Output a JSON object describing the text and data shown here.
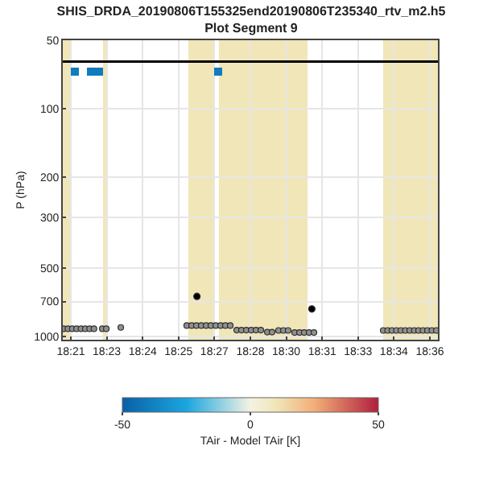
{
  "chart_data": {
    "type": "bar",
    "title": "SHIS_DRDA_20190806T155325end20190806T235340_rtv_m2.h5",
    "subtitle": "Plot Segment 9",
    "ylabel": "P (hPa)",
    "clabel": "TAir - Model TAir [K]",
    "clim": [
      -50,
      50
    ],
    "cticks": [
      -50,
      0,
      50
    ],
    "series": [
      {
        "x": [
          18.3527,
          18.3639,
          18.3694,
          18.4527
        ],
        "base": [
          66,
          66,
          66,
          66
        ],
        "values": [
          6,
          6,
          6,
          6
        ],
        "cvalues": [
          -40,
          -40,
          -40,
          -40
        ]
      },
      {
        "type": "line",
        "color": "#000000",
        "x": [
          18.3444,
          18.6056
        ],
        "values": [
          62,
          62
        ]
      },
      {
        "type": "scatter",
        "color": "#909090",
        "marker": "circle",
        "x": [
          18.345,
          18.348,
          18.351,
          18.354,
          18.3571,
          18.3601,
          18.3631,
          18.3661,
          18.3719,
          18.3747,
          18.3848,
          18.4307,
          18.4341,
          18.4374,
          18.4408,
          18.4442,
          18.4475,
          18.4509,
          18.4543,
          18.4576,
          18.461,
          18.4655,
          18.4688,
          18.4722,
          18.4756,
          18.4789,
          18.4823,
          18.4868,
          18.4901,
          18.4946,
          18.498,
          18.5013,
          18.5058,
          18.5092,
          18.5125,
          18.5159,
          18.5193,
          18.5675,
          18.5706,
          18.5736,
          18.5767,
          18.5798,
          18.5829,
          18.586,
          18.5891,
          18.5921,
          18.5952,
          18.5983,
          18.6014,
          18.6045
        ],
        "values": [
          922,
          922,
          922,
          922,
          922,
          922,
          922,
          922,
          922,
          922,
          910,
          893,
          893,
          893,
          893,
          893,
          893,
          893,
          893,
          893,
          893,
          935,
          935,
          935,
          935,
          935,
          935,
          954,
          954,
          938,
          938,
          938,
          958,
          958,
          958,
          958,
          958,
          938,
          938,
          938,
          938,
          938,
          938,
          938,
          938,
          938,
          938,
          938,
          938,
          938
        ]
      },
      {
        "type": "scatter",
        "color": "#000000",
        "marker": "circle",
        "x": [
          18.4378,
          18.5178
        ],
        "values": [
          665,
          755
        ]
      }
    ],
    "bands": [
      {
        "axis": "x",
        "from": 18.3444,
        "to": 18.35,
        "color": "#f0e6b8"
      },
      {
        "axis": "x",
        "from": 18.3724,
        "to": 18.3747,
        "color": "#f0e6b8"
      },
      {
        "axis": "x",
        "from": 18.4318,
        "to": 18.4498,
        "color": "#f0e6b8"
      },
      {
        "axis": "x",
        "from": 18.4531,
        "to": 18.5148,
        "color": "#f0e6b8"
      },
      {
        "axis": "x",
        "from": 18.5675,
        "to": 18.6056,
        "color": "#f0e6b8"
      }
    ],
    "log": "y",
    "xlim": [
      18.3444,
      18.6056
    ],
    "xticks": [
      {
        "value": 18.35,
        "label": "18:21"
      },
      {
        "value": 18.375,
        "label": "18:23"
      },
      {
        "value": 18.4,
        "label": "18:24"
      },
      {
        "value": 18.425,
        "label": "18:25"
      },
      {
        "value": 18.45,
        "label": "18:27"
      },
      {
        "value": 18.475,
        "label": "18:28"
      },
      {
        "value": 18.5,
        "label": "18:30"
      },
      {
        "value": 18.525,
        "label": "18:31"
      },
      {
        "value": 18.55,
        "label": "18:33"
      },
      {
        "value": 18.575,
        "label": "18:34"
      },
      {
        "value": 18.6,
        "label": "18:36"
      }
    ],
    "ylim": [
      1030,
      50
    ],
    "yticks": [
      50,
      100,
      200,
      300,
      500,
      700,
      1000
    ],
    "grid": true
  }
}
